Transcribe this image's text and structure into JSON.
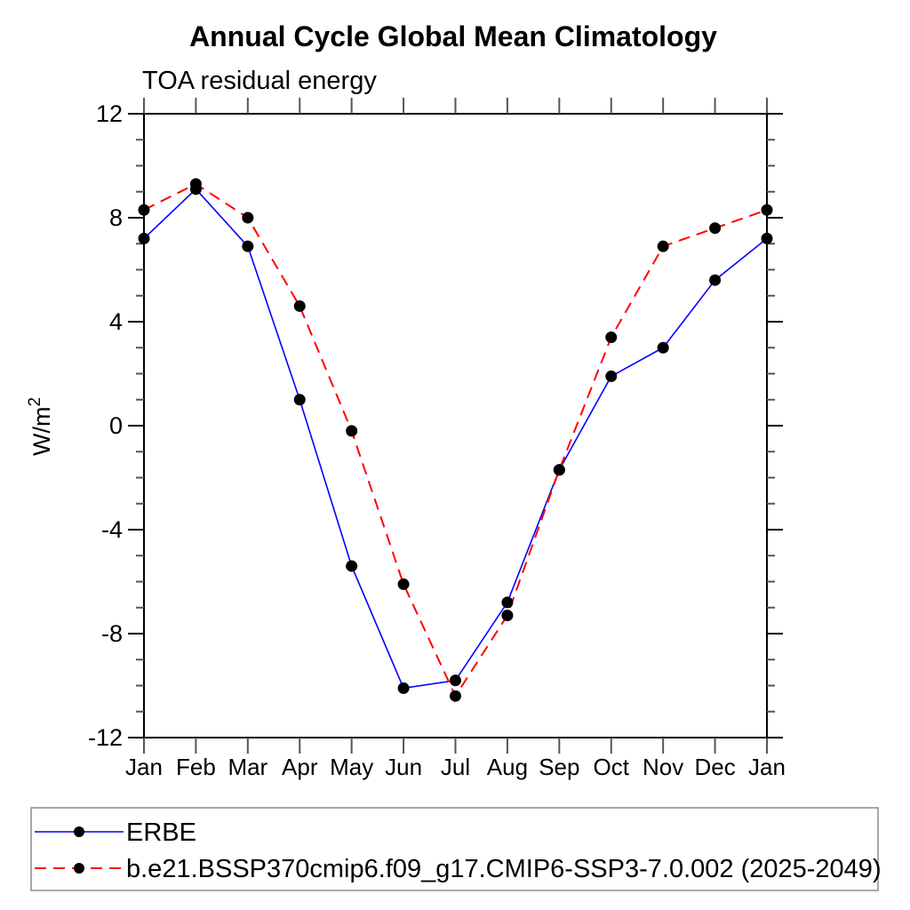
{
  "page": {
    "background": "#ffffff",
    "text_color": "#000000"
  },
  "chart_data": {
    "type": "line",
    "title": "Annual Cycle Global Mean Climatology",
    "subtitle": "TOA residual energy",
    "ylabel": "W/m^2",
    "ylabel_parts": {
      "base": "W/m",
      "exponent": "2"
    },
    "categories": [
      "Jan",
      "Feb",
      "Mar",
      "Apr",
      "May",
      "Jun",
      "Jul",
      "Aug",
      "Sep",
      "Oct",
      "Nov",
      "Dec",
      "Jan"
    ],
    "series": [
      {
        "name": "ERBE",
        "color": "#0000ff",
        "line_style": "solid",
        "marker": "filled-circle",
        "marker_color": "#000000",
        "values": [
          7.2,
          9.1,
          6.9,
          1.0,
          -5.4,
          -10.1,
          -9.8,
          -6.8,
          -1.7,
          1.9,
          3.0,
          5.6,
          7.2
        ]
      },
      {
        "name": "b.e21.BSSP370cmip6.f09_g17.CMIP6-SSP3-7.0.002 (2025-2049)",
        "color": "#ff0000",
        "line_style": "dashed",
        "marker": "filled-circle",
        "marker_color": "#000000",
        "values": [
          8.3,
          9.3,
          8.0,
          4.6,
          -0.2,
          -6.1,
          -10.4,
          -7.3,
          -1.7,
          3.4,
          6.9,
          7.6,
          8.3
        ]
      }
    ],
    "ylim": [
      -12,
      12
    ],
    "ytick_major_step": 4,
    "ytick_minor_step": 1,
    "ytick_labels": [
      "12",
      "8",
      "4",
      "0",
      "-4",
      "-8",
      "-12"
    ],
    "grid": "off",
    "legend_position": "bottom",
    "axis_color": "#000000",
    "tick_color": "#555555",
    "legend_border_color": "#8a8a8a"
  }
}
